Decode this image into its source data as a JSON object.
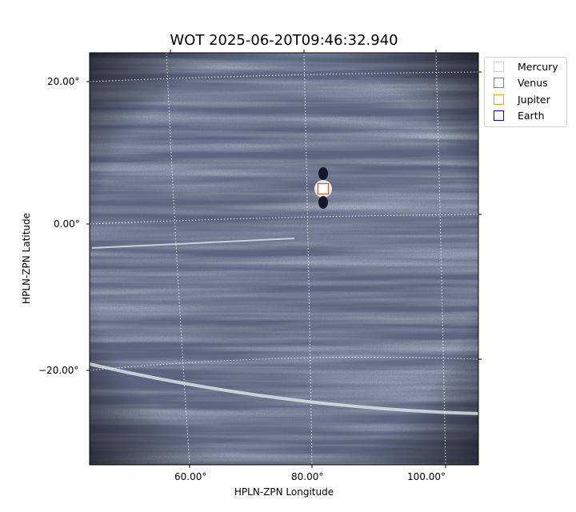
{
  "chart_data": {
    "type": "heatmap",
    "title": "WOT 2025-06-20T09:46:32.940",
    "xlabel": "HPLN-ZPN Longitude",
    "ylabel": "HPLN-ZPN Latitude",
    "xticks": [
      "60.00°",
      "80.00°",
      "100.00°"
    ],
    "yticks": [
      "20.00°",
      "0.00°",
      "−20.00°"
    ],
    "grid": true,
    "colormap": "bone",
    "legend_position": "upper-right outside",
    "legend": [
      {
        "name": "Mercury",
        "color": "#d3d3d3"
      },
      {
        "name": "Venus",
        "color": "#c8743a"
      },
      {
        "name": "Jupiter",
        "color": "#ffa500"
      },
      {
        "name": "Earth",
        "color": "#0000ff"
      }
    ],
    "markers": [
      {
        "name": "Venus",
        "lon": 82,
        "lat": 5
      }
    ]
  }
}
